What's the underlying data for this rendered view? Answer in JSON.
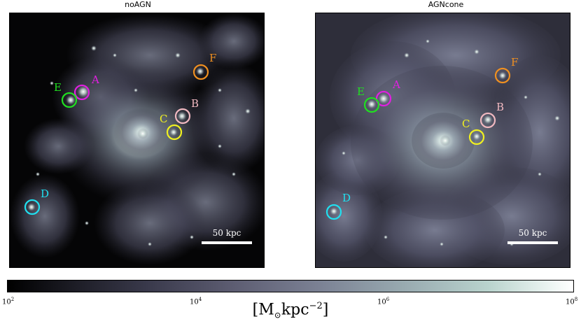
{
  "panels": [
    {
      "title": "noAGN",
      "scale_label": "50 kpc"
    },
    {
      "title": "AGNcone",
      "scale_label": "50 kpc"
    }
  ],
  "markers": {
    "A": {
      "label": "A",
      "color": "#e020e0"
    },
    "B": {
      "label": "B",
      "color": "#f0b8c0"
    },
    "C": {
      "label": "C",
      "color": "#f0f020"
    },
    "D": {
      "label": "D",
      "color": "#20e0f0"
    },
    "E": {
      "label": "E",
      "color": "#20e020"
    },
    "F": {
      "label": "F",
      "color": "#f09020"
    }
  },
  "colorbar": {
    "ticks": [
      {
        "base": "10",
        "exp": "2"
      },
      {
        "base": "10",
        "exp": "4"
      },
      {
        "base": "10",
        "exp": "6"
      },
      {
        "base": "10",
        "exp": "8"
      }
    ],
    "label_prefix": "[M",
    "label_sub": "⊙",
    "label_unit": "kpc",
    "label_exp": "−2",
    "label_suffix": "]"
  }
}
